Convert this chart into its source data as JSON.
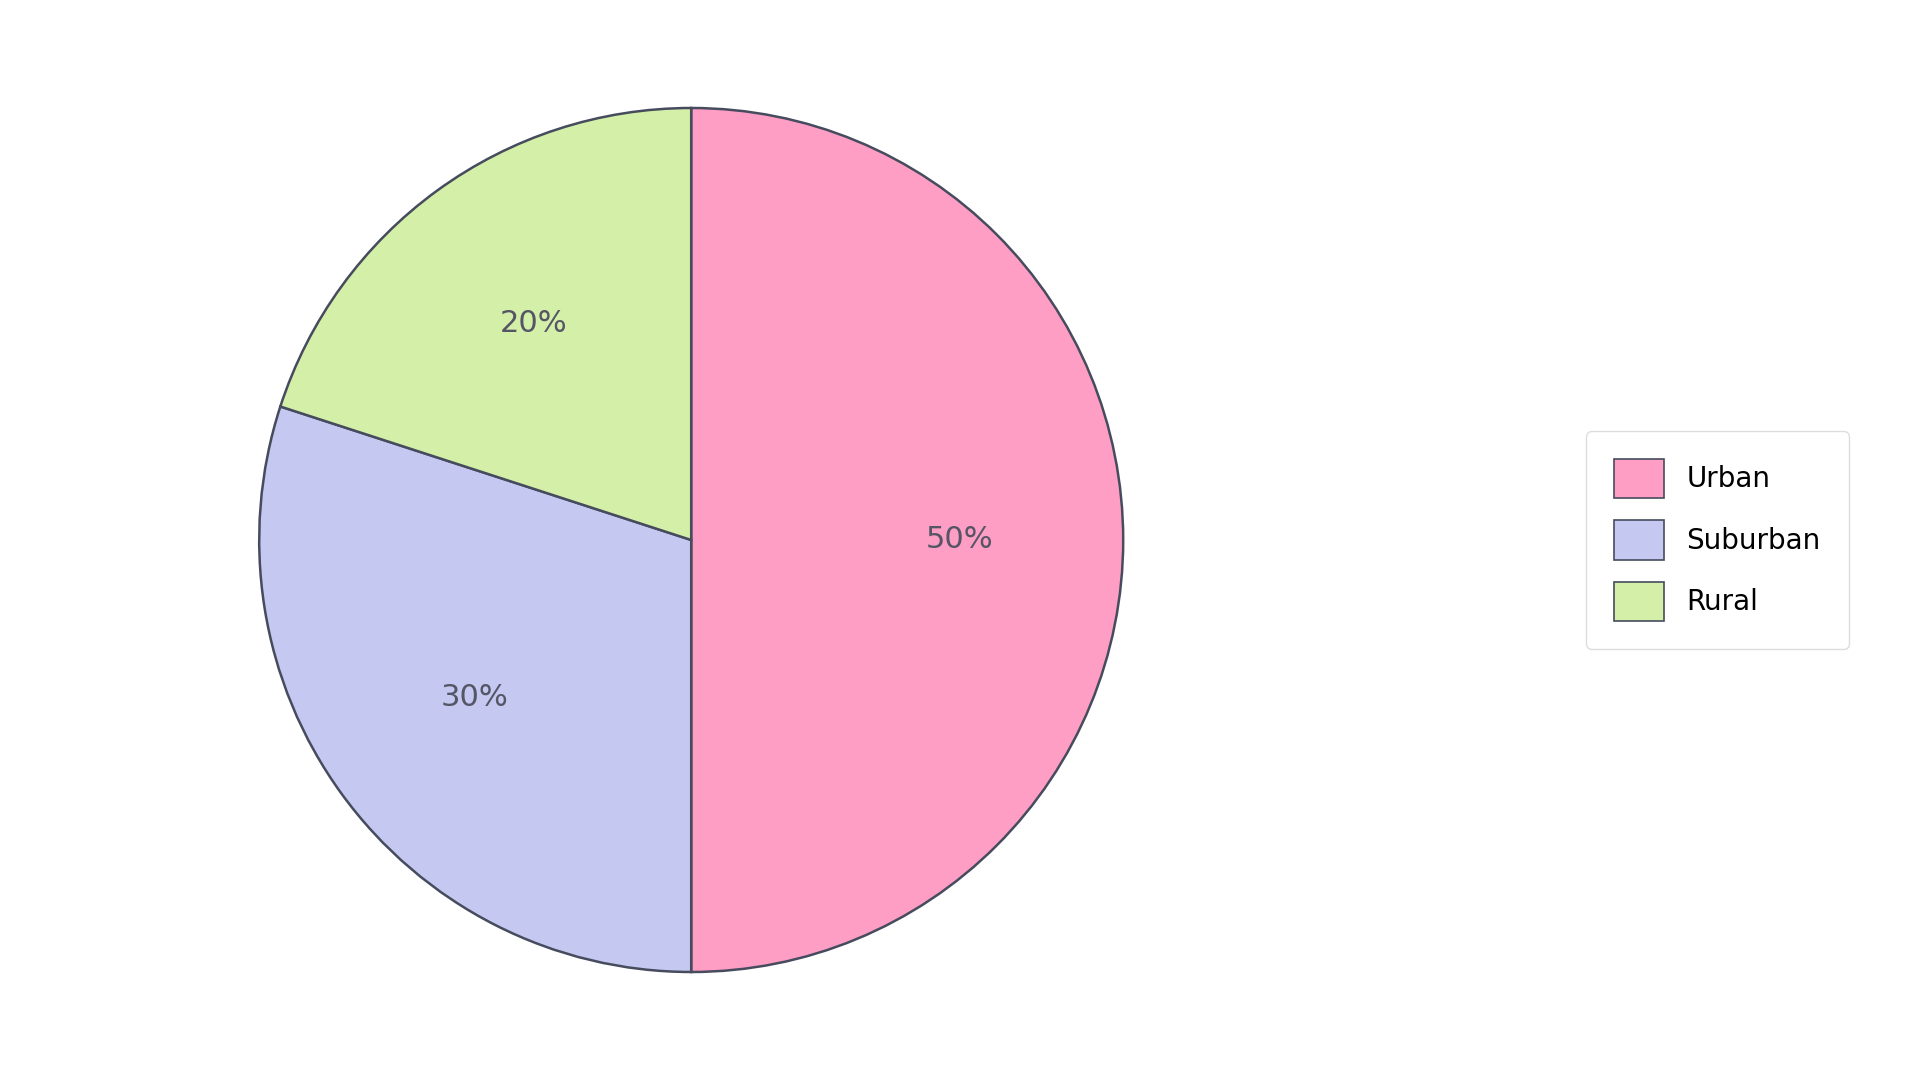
{
  "labels": [
    "Urban",
    "Suburban",
    "Rural"
  ],
  "sizes": [
    50,
    30,
    20
  ],
  "colors": [
    "#FF9EC4",
    "#C5C8F0",
    "#D4EFA8"
  ],
  "pct_labels": [
    "50%",
    "30%",
    "20%"
  ],
  "edge_color": "#464c5e",
  "edge_width": 1.8,
  "title_fontsize": 30,
  "pct_fontsize": 22,
  "legend_fontsize": 20,
  "background_color": "#ffffff",
  "startangle": 90,
  "counterclock": false
}
